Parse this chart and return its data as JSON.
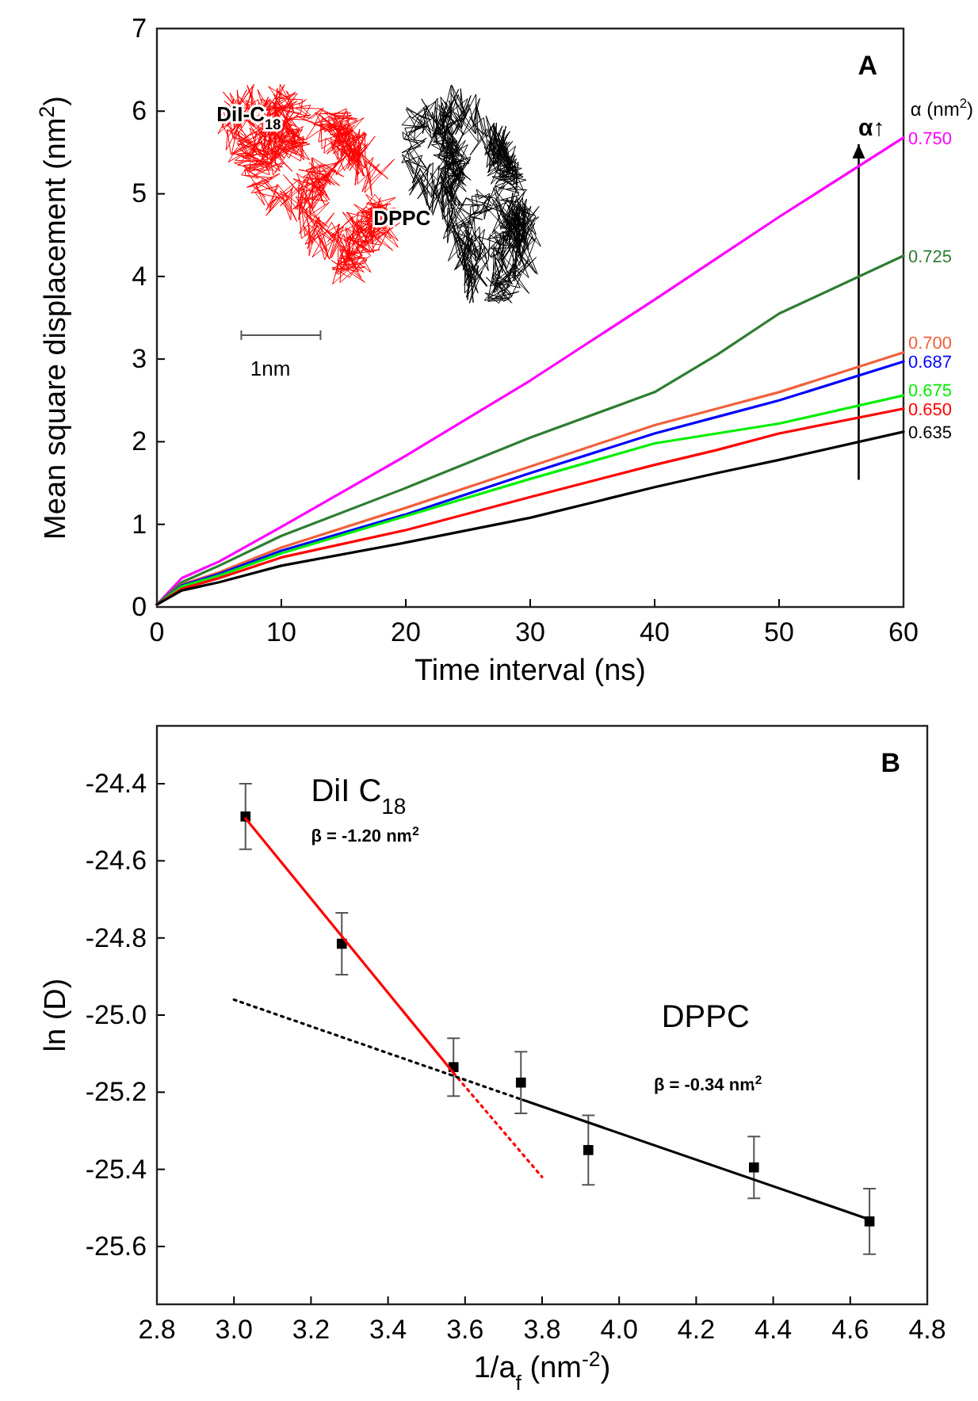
{
  "chart_data": [
    {
      "type": "line",
      "xlabel": "Time interval (ns)",
      "ylabel": "Mean square displacement (nm$^{2}$)",
      "legend_title": "α (nm$^{2}$)",
      "x": [
        0,
        2,
        5,
        10,
        20,
        30,
        40,
        45,
        50,
        60
      ],
      "xlim": [
        0,
        60
      ],
      "xticks": [
        0,
        10,
        20,
        30,
        40,
        50,
        60
      ],
      "ylim": [
        0,
        7
      ],
      "yticks": [
        0,
        1,
        2,
        3,
        4,
        5,
        6,
        7
      ],
      "series": [
        {
          "name": "0.750",
          "color": "#ff00ff",
          "values": [
            0.03,
            0.35,
            0.55,
            0.97,
            1.83,
            2.74,
            3.72,
            4.22,
            4.72,
            5.68
          ]
        },
        {
          "name": "0.725",
          "color": "#2e7d32",
          "values": [
            0.03,
            0.3,
            0.5,
            0.86,
            1.44,
            2.05,
            2.6,
            3.05,
            3.55,
            4.25
          ]
        },
        {
          "name": "0.700",
          "color": "#f0603c",
          "values": [
            0.03,
            0.27,
            0.42,
            0.72,
            1.2,
            1.7,
            2.2,
            2.4,
            2.6,
            3.08
          ]
        },
        {
          "name": "0.687",
          "color": "#0000ff",
          "values": [
            0.03,
            0.26,
            0.4,
            0.68,
            1.12,
            1.62,
            2.1,
            2.3,
            2.5,
            2.97
          ]
        },
        {
          "name": "0.675",
          "color": "#00ee00",
          "values": [
            0.03,
            0.25,
            0.38,
            0.65,
            1.1,
            1.55,
            1.98,
            2.1,
            2.22,
            2.56
          ]
        },
        {
          "name": "0.650",
          "color": "#ff0000",
          "values": [
            0.03,
            0.22,
            0.35,
            0.6,
            0.93,
            1.33,
            1.72,
            1.9,
            2.1,
            2.4
          ]
        },
        {
          "name": "0.635",
          "color": "#000000",
          "values": [
            0.03,
            0.2,
            0.3,
            0.5,
            0.78,
            1.08,
            1.45,
            1.62,
            1.78,
            2.12
          ]
        }
      ],
      "annotations": [
        "A",
        "α↑",
        "DiI-C$_{18}$",
        "DPPC",
        "1nm"
      ]
    },
    {
      "type": "scatter",
      "xlabel": "1/a$_{f}$ (nm$^{-2}$)",
      "ylabel": "ln (D)",
      "xlim": [
        2.8,
        4.8
      ],
      "xticks": [
        2.8,
        {
          "value": 3,
          "label": "3.0"
        },
        3.2,
        3.4,
        3.6,
        3.8,
        {
          "value": 4,
          "label": "4.0"
        },
        4.2,
        4.4,
        4.6,
        4.8
      ],
      "ylim": [
        -25.75,
        -24.25
      ],
      "yticks": [
        -25.6,
        -25.4,
        -25.2,
        {
          "value": -25,
          "label": "-25.0"
        },
        -24.8,
        -24.6,
        -24.4
      ],
      "series": [
        {
          "color": "#000000",
          "marker": "square",
          "x": [
            3.03,
            3.28,
            3.57,
            3.745,
            3.92,
            4.35,
            4.65
          ],
          "values": [
            -24.485,
            -24.815,
            -25.135,
            -25.175,
            -25.35,
            -25.395,
            -25.535
          ],
          "errors": [
            0.085,
            0.08,
            0.075,
            0.08,
            0.09,
            0.08,
            0.085
          ]
        },
        {
          "type": "line",
          "color": "#ff0000",
          "line_style": "solid",
          "x": [
            3.03,
            3.57
          ],
          "values": [
            -24.49,
            -25.15
          ]
        },
        {
          "type": "line",
          "color": "#ff0000",
          "line_style": "dotted",
          "x": [
            3.57,
            3.8
          ],
          "values": [
            -25.15,
            -25.42
          ]
        },
        {
          "type": "line",
          "color": "#000000",
          "line_style": "solid",
          "x": [
            3.75,
            4.65
          ],
          "values": [
            -25.22,
            -25.53
          ]
        },
        {
          "type": "line",
          "color": "#000000",
          "line_style": "dotted",
          "x": [
            3.0,
            3.75
          ],
          "values": [
            -24.96,
            -25.22
          ]
        }
      ],
      "annotations": [
        "B",
        "DiI C$_{18}$",
        "β = -1.20 nm$^{2}$",
        "DPPC",
        "β = -0.34 nm$^{2}$"
      ]
    }
  ]
}
